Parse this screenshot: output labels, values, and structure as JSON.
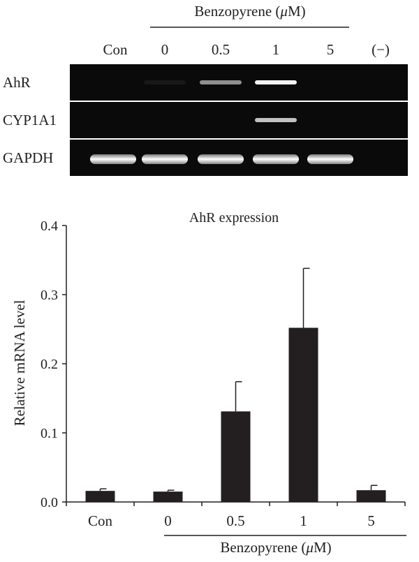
{
  "gel": {
    "header": {
      "label": "Benzopyrene (",
      "unit_symbol": "μ",
      "unit_rest": "M)"
    },
    "lanes": [
      "Con",
      "0",
      "0.5",
      "1",
      "5",
      "(−)"
    ],
    "rows": [
      {
        "name": "AhR",
        "bands": [
          0.0,
          0.06,
          0.55,
          0.95,
          0.0,
          0.0
        ]
      },
      {
        "name": "CYP1A1",
        "bands": [
          0.0,
          0.0,
          0.0,
          0.75,
          0.0,
          0.0
        ]
      },
      {
        "name": "GAPDH",
        "bands": [
          1.0,
          1.0,
          1.0,
          1.0,
          1.0,
          0.0
        ]
      }
    ]
  },
  "chart_data": {
    "type": "bar",
    "title": "AhR expression",
    "ylabel": "Relative mRNA level",
    "xlabel": "",
    "categories": [
      "Con",
      "0",
      "0.5",
      "1",
      "5"
    ],
    "values": [
      0.016,
      0.015,
      0.131,
      0.252,
      0.017
    ],
    "errors": [
      0.003,
      0.002,
      0.043,
      0.086,
      0.007
    ],
    "ylim": [
      0,
      0.4
    ],
    "yticks": [
      "0.0",
      "0.1",
      "0.2",
      "0.3",
      "0.4"
    ],
    "group_label": {
      "label": "Benzopyrene (",
      "unit_symbol": "μ",
      "unit_rest": "M)"
    },
    "bar_color": "#231f20",
    "grid": false
  }
}
